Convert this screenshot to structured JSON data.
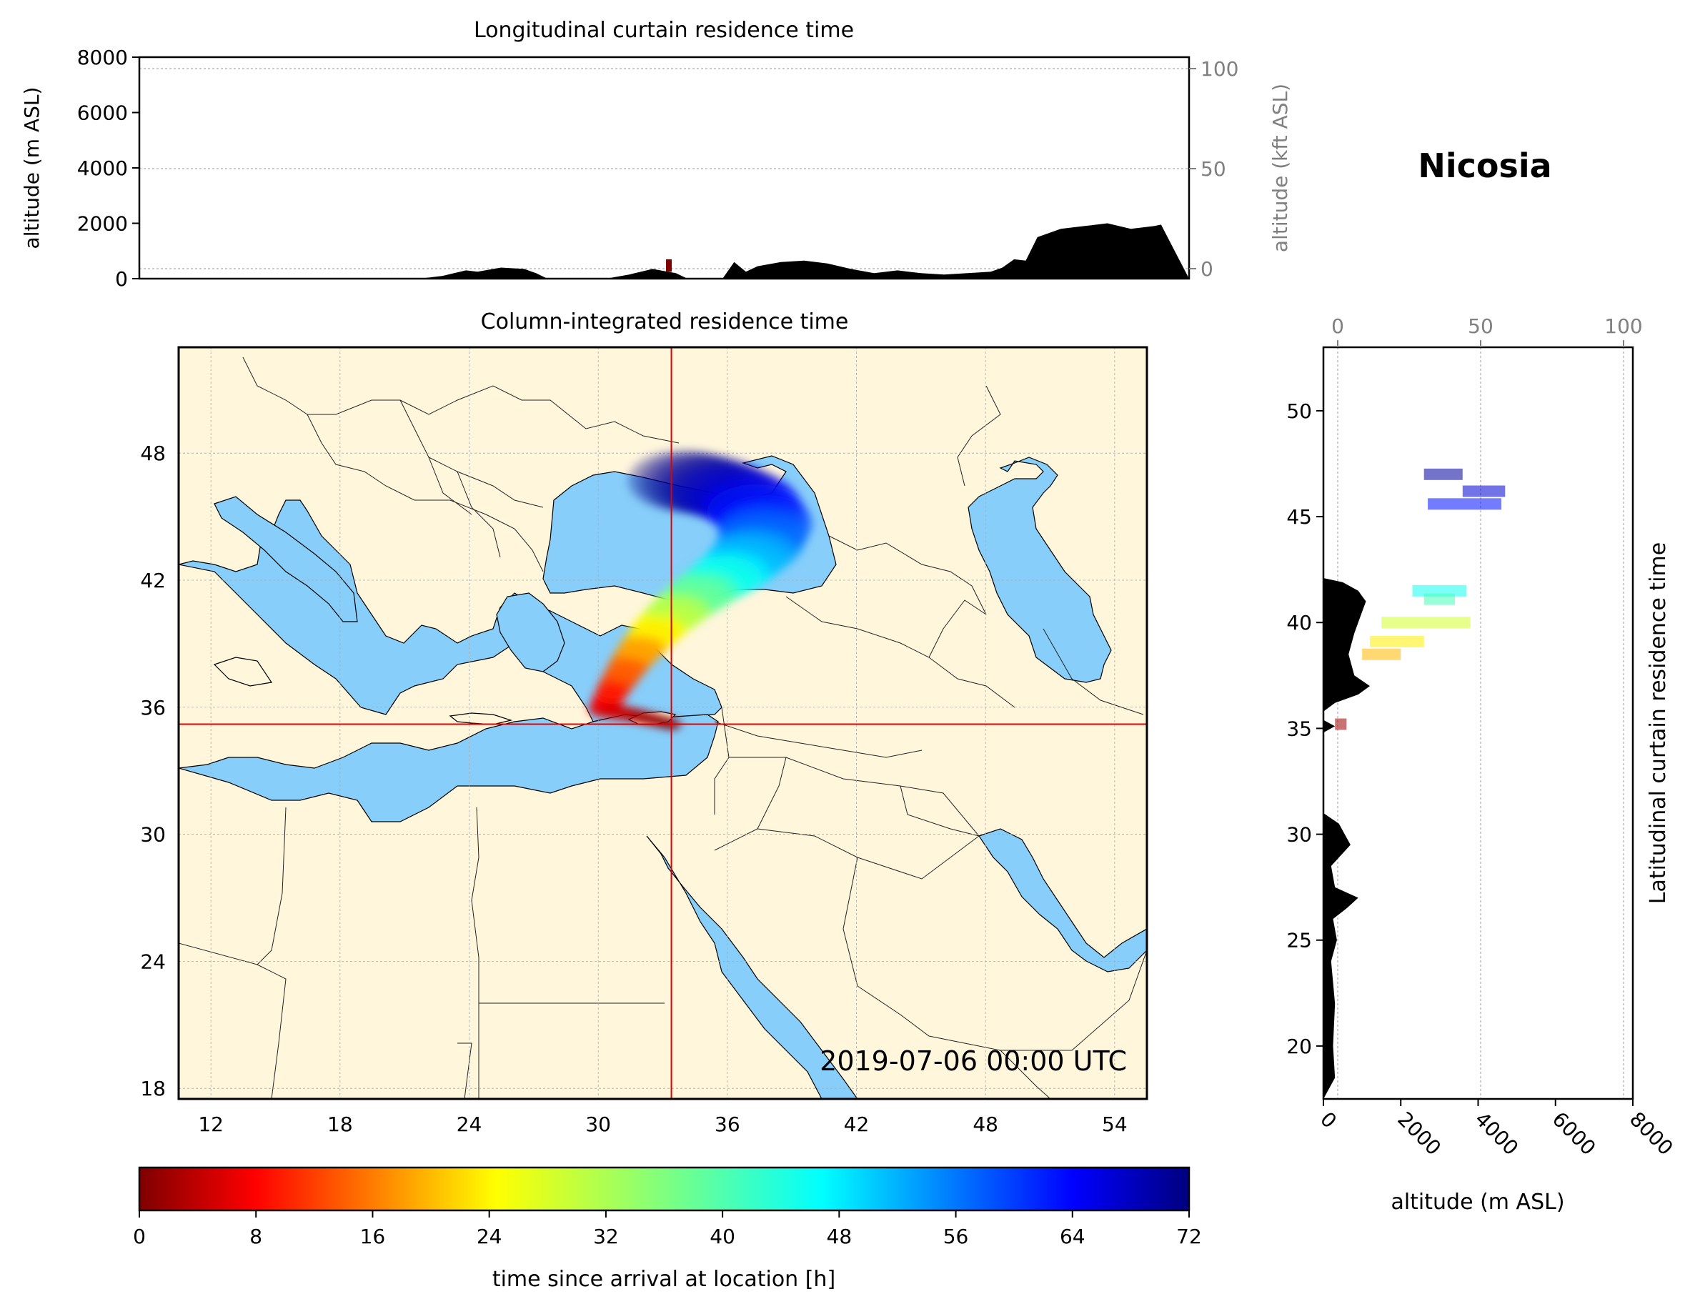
{
  "location_title": "Nicosia",
  "timestamp": "2019-07-06 00:00 UTC",
  "colors": {
    "land": "#fff6dc",
    "sea": "#87cefa",
    "crosshair": "#e00000",
    "terrain": "#000000",
    "secondary_axis": "#808080",
    "grid": "#999999"
  },
  "chart_data": [
    {
      "id": "longitudinal_curtain",
      "type": "area",
      "title": "Longitudinal curtain residence time",
      "ylabel": "altitude (m ASL)",
      "ylabel_right": "altitude (kft ASL)",
      "x_range": [
        10.5,
        55.5
      ],
      "ylim": [
        0,
        8000
      ],
      "yticks": [
        "0",
        "2000",
        "4000",
        "6000",
        "8000"
      ],
      "yticks_right": [
        "0",
        "50",
        "100"
      ],
      "grid": true,
      "terrain_profile": {
        "lon": [
          10.5,
          22.5,
          23.5,
          24.5,
          25,
          26,
          27,
          27.5,
          28,
          30.5,
          31.5,
          32.5,
          33.5,
          34,
          35.5,
          36,
          36.5,
          37,
          38,
          39,
          40,
          41,
          42,
          43,
          44,
          45,
          46,
          47,
          47.5,
          48,
          48.5,
          49,
          50,
          51,
          52,
          53,
          54,
          54.3,
          55.5
        ],
        "alt_m": [
          0,
          0,
          100,
          300,
          250,
          400,
          350,
          200,
          0,
          0,
          150,
          350,
          200,
          0,
          0,
          600,
          250,
          450,
          600,
          650,
          550,
          350,
          200,
          300,
          200,
          150,
          200,
          250,
          400,
          700,
          650,
          1500,
          1800,
          1900,
          2000,
          1800,
          1900,
          1950,
          0
        ]
      },
      "plume_marker": {
        "lon": 33.2,
        "alt_range_m": [
          250,
          700
        ],
        "residence_h": 0
      }
    },
    {
      "id": "column_integrated",
      "type": "heatmap",
      "title": "Column-integrated residence time",
      "xlim": [
        10.5,
        55.5
      ],
      "ylim": [
        17.5,
        53
      ],
      "xticks": [
        "12",
        "18",
        "24",
        "30",
        "36",
        "42",
        "48",
        "54"
      ],
      "yticks": [
        "18",
        "24",
        "30",
        "36",
        "42",
        "48"
      ],
      "grid": true,
      "receptor": {
        "lon": 33.4,
        "lat": 35.2
      },
      "plume_path": [
        {
          "lon": 33.4,
          "lat": 35.2,
          "hours": 0
        },
        {
          "lon": 31.8,
          "lat": 35.6,
          "hours": 3
        },
        {
          "lon": 30.2,
          "lat": 35.9,
          "hours": 7
        },
        {
          "lon": 30.8,
          "lat": 37.0,
          "hours": 12
        },
        {
          "lon": 31.5,
          "lat": 38.1,
          "hours": 17
        },
        {
          "lon": 32.2,
          "lat": 39.0,
          "hours": 22
        },
        {
          "lon": 33.0,
          "lat": 39.9,
          "hours": 28
        },
        {
          "lon": 34.0,
          "lat": 40.8,
          "hours": 34
        },
        {
          "lon": 35.2,
          "lat": 41.7,
          "hours": 40
        },
        {
          "lon": 36.5,
          "lat": 42.6,
          "hours": 46
        },
        {
          "lon": 37.5,
          "lat": 43.6,
          "hours": 52
        },
        {
          "lon": 37.8,
          "lat": 44.7,
          "hours": 58
        },
        {
          "lon": 36.9,
          "lat": 45.8,
          "hours": 64
        },
        {
          "lon": 35.4,
          "lat": 46.4,
          "hours": 69
        },
        {
          "lon": 33.5,
          "lat": 46.8,
          "hours": 72
        }
      ]
    },
    {
      "id": "latitudinal_curtain",
      "type": "area",
      "title": "Latitudinal curtain residence time",
      "xlabel": "altitude (m ASL)",
      "xlim": [
        0,
        8000
      ],
      "ylim": [
        17.5,
        53
      ],
      "xticks": [
        "0",
        "2000",
        "4000",
        "6000",
        "8000"
      ],
      "xticks_top": [
        "0",
        "50",
        "100"
      ],
      "yticks": [
        "20",
        "25",
        "30",
        "35",
        "40",
        "45",
        "50"
      ],
      "grid": true,
      "terrain_profile": {
        "lat": [
          17.5,
          18.5,
          20,
          22,
          24,
          25,
          26,
          26.5,
          27,
          27.5,
          28.5,
          29.5,
          30.5,
          31,
          34.8,
          35.1,
          35.4,
          35.8,
          36.2,
          36.6,
          37,
          37.5,
          38.5,
          39.5,
          40.5,
          41,
          41.5,
          41.9,
          42.1,
          53
        ],
        "alt_m": [
          0,
          300,
          250,
          300,
          200,
          350,
          250,
          600,
          900,
          300,
          200,
          700,
          400,
          0,
          0,
          300,
          0,
          0,
          300,
          900,
          1200,
          800,
          650,
          800,
          1000,
          1100,
          900,
          500,
          0,
          0
        ]
      },
      "plume_segments": [
        {
          "lat": 47.0,
          "alt_range_m": [
            2600,
            3600
          ],
          "hours": 70
        },
        {
          "lat": 46.2,
          "alt_range_m": [
            3600,
            4700
          ],
          "hours": 66
        },
        {
          "lat": 45.6,
          "alt_range_m": [
            2700,
            4600
          ],
          "hours": 62
        },
        {
          "lat": 41.5,
          "alt_range_m": [
            2300,
            3700
          ],
          "hours": 44
        },
        {
          "lat": 41.1,
          "alt_range_m": [
            2600,
            3400
          ],
          "hours": 40
        },
        {
          "lat": 40.0,
          "alt_range_m": [
            1500,
            3800
          ],
          "hours": 30
        },
        {
          "lat": 39.1,
          "alt_range_m": [
            1200,
            2600
          ],
          "hours": 26
        },
        {
          "lat": 38.5,
          "alt_range_m": [
            1000,
            2000
          ],
          "hours": 22
        },
        {
          "lat": 35.2,
          "alt_range_m": [
            300,
            600
          ],
          "hours": 2
        }
      ]
    },
    {
      "id": "colorbar",
      "type": "heatmap",
      "xlabel": "time since arrival at location [h]",
      "range": [
        0,
        72
      ],
      "ticks": [
        "0",
        "8",
        "16",
        "24",
        "32",
        "40",
        "48",
        "56",
        "64",
        "72"
      ],
      "colormap": "jet_reversed"
    }
  ]
}
